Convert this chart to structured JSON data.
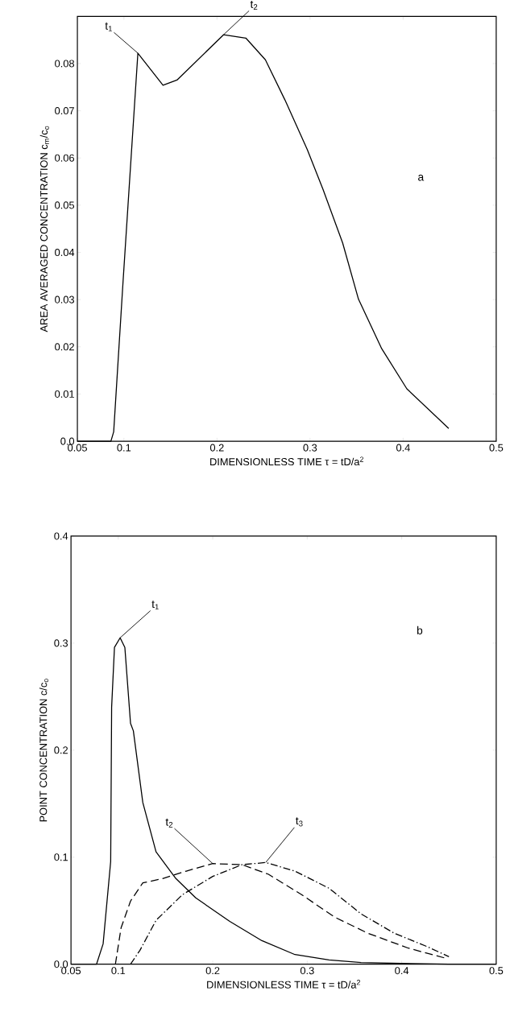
{
  "chart_data": [
    {
      "type": "line",
      "xlabel": "DIMENSIONLESS TIME   τ = tD/a$^{2}$",
      "ylabel": "AREA AVERAGED CONCENTRATION c$_{m}$/c$_{o}$",
      "xlim": [
        0.05,
        0.5
      ],
      "ylim": [
        0,
        0.09
      ],
      "xticks": [
        0.05,
        0.1,
        0.2,
        0.3,
        0.4,
        0.5
      ],
      "yticks": [
        {
          "value": 0,
          "label": "0.0"
        },
        0.01,
        0.02,
        0.03,
        0.04,
        0.05,
        0.06,
        0.07,
        0.08
      ],
      "series": [
        {
          "color": "#000000",
          "line_style": "solid",
          "x": [
            0.05,
            0.086,
            0.089,
            0.099,
            0.115,
            0.142,
            0.157,
            0.207,
            0.231,
            0.252,
            0.273,
            0.297,
            0.314,
            0.335,
            0.352,
            0.377,
            0.404,
            0.449
          ],
          "values": [
            0,
            0,
            0.002,
            0.0336,
            0.0822,
            0.0754,
            0.0765,
            0.0861,
            0.0854,
            0.0808,
            0.0723,
            0.0618,
            0.0533,
            0.042,
            0.0301,
            0.0196,
            0.0111,
            0.0027
          ]
        }
      ],
      "annotations": [
        {
          "text": "t$_{1}$",
          "x": 0.115,
          "y": 0.0822
        },
        {
          "text": "t$_{2}$",
          "x": 0.207,
          "y": 0.0861
        },
        "a"
      ]
    },
    {
      "type": "line",
      "xlabel": "DIMENSIONLESS TIME   τ = tD/a$^{2}$",
      "ylabel": "POINT CONCENTRATION   c/c$_{o}$",
      "xlim": [
        0.05,
        0.5
      ],
      "ylim": [
        0,
        0.4
      ],
      "xticks": [
        0.05,
        0.1,
        0.2,
        0.3,
        0.4,
        0.5
      ],
      "yticks": [
        {
          "value": 0,
          "label": "0.0"
        },
        0.1,
        0.2,
        0.3,
        0.4
      ],
      "series": [
        {
          "color": "#000000",
          "line_style": "solid",
          "x": [
            0.05,
            0.077,
            0.084,
            0.092,
            0.093,
            0.096,
            0.102,
            0.107,
            0.113,
            0.116,
            0.126,
            0.14,
            0.161,
            0.182,
            0.218,
            0.252,
            0.287,
            0.323,
            0.357,
            0.45,
            0.5
          ],
          "values": [
            0,
            0,
            0.019,
            0.096,
            0.24,
            0.296,
            0.305,
            0.296,
            0.225,
            0.218,
            0.151,
            0.105,
            0.08,
            0.062,
            0.04,
            0.022,
            0.009,
            0.004,
            0.0015,
            0,
            0
          ]
        },
        {
          "color": "#000000",
          "line_style": "dashed",
          "x": [
            0.097,
            0.103,
            0.113,
            0.126,
            0.147,
            0.172,
            0.2,
            0.231,
            0.259,
            0.294,
            0.329,
            0.364,
            0.407,
            0.449
          ],
          "values": [
            0,
            0.034,
            0.059,
            0.076,
            0.08,
            0.087,
            0.094,
            0.093,
            0.084,
            0.065,
            0.044,
            0.029,
            0.015,
            0.005
          ]
        },
        {
          "color": "#000000",
          "line_style": "dashdot",
          "x": [
            0.113,
            0.123,
            0.14,
            0.168,
            0.2,
            0.231,
            0.256,
            0.287,
            0.323,
            0.357,
            0.392,
            0.428,
            0.45
          ],
          "values": [
            0,
            0.013,
            0.041,
            0.065,
            0.082,
            0.093,
            0.095,
            0.087,
            0.071,
            0.047,
            0.029,
            0.016,
            0.007
          ]
        }
      ],
      "annotations": [
        {
          "text": "t$_{1}$",
          "x": 0.102,
          "y": 0.305
        },
        {
          "text": "t$_{2}$",
          "x": 0.2,
          "y": 0.094
        },
        {
          "text": "t$_{3}$",
          "x": 0.256,
          "y": 0.095
        },
        "b"
      ]
    }
  ]
}
